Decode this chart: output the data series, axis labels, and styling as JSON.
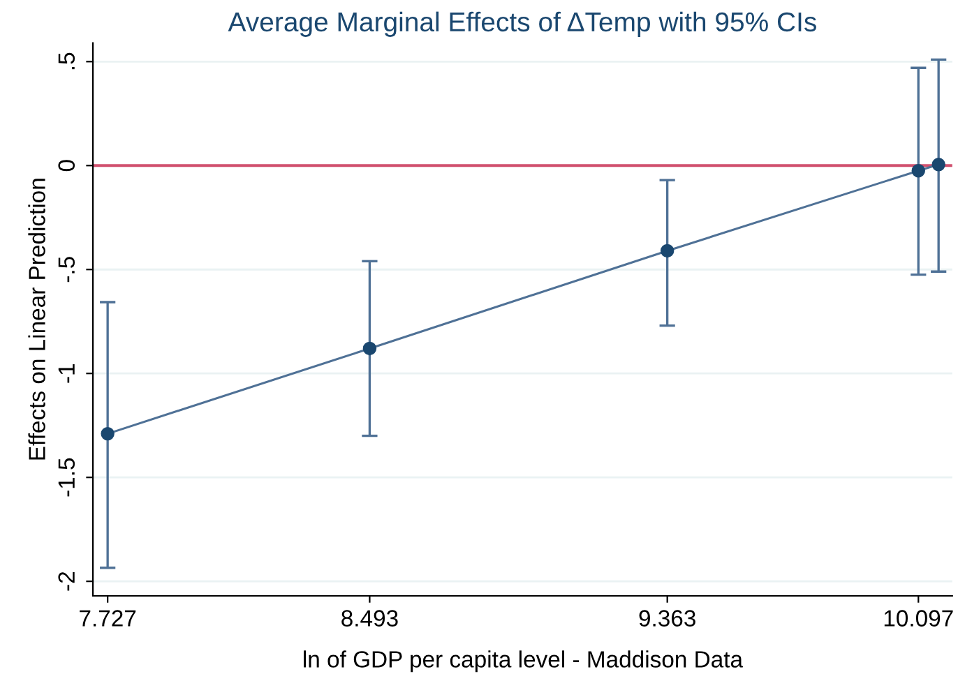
{
  "chart_data": {
    "type": "line",
    "title": "Average Marginal Effects of ΔTemp with 95% CIs",
    "xlabel": "ln of GDP per capita level - Maddison Data",
    "ylabel": "Effects on Linear Prediction",
    "x": [
      7.727,
      8.493,
      9.363,
      10.097,
      10.156
    ],
    "series": [
      {
        "color": "#1a476f",
        "values": [
          -1.29,
          -0.88,
          -0.41,
          -0.025,
          0.005
        ],
        "errors": [
          [
            -1.935,
            -0.657
          ],
          [
            -1.3,
            -0.46
          ],
          [
            -0.77,
            -0.07
          ],
          [
            -0.525,
            0.47
          ],
          [
            -0.51,
            0.51
          ]
        ]
      }
    ],
    "marker": "circle",
    "line_style": "solid",
    "xlim": [
      7.684,
      10.196
    ],
    "ylim": [
      -2.07,
      0.59
    ],
    "xticks": [
      7.727,
      8.493,
      9.363,
      10.097
    ],
    "yticks": [
      {
        "value": 0.5,
        "label": ".5"
      },
      0,
      {
        "value": -0.5,
        "label": "-.5"
      },
      -1,
      -1.5,
      -2
    ],
    "grid": "y",
    "ref_lines": [
      {
        "axis": "y",
        "value": 0,
        "color": "#d0506e"
      }
    ]
  }
}
